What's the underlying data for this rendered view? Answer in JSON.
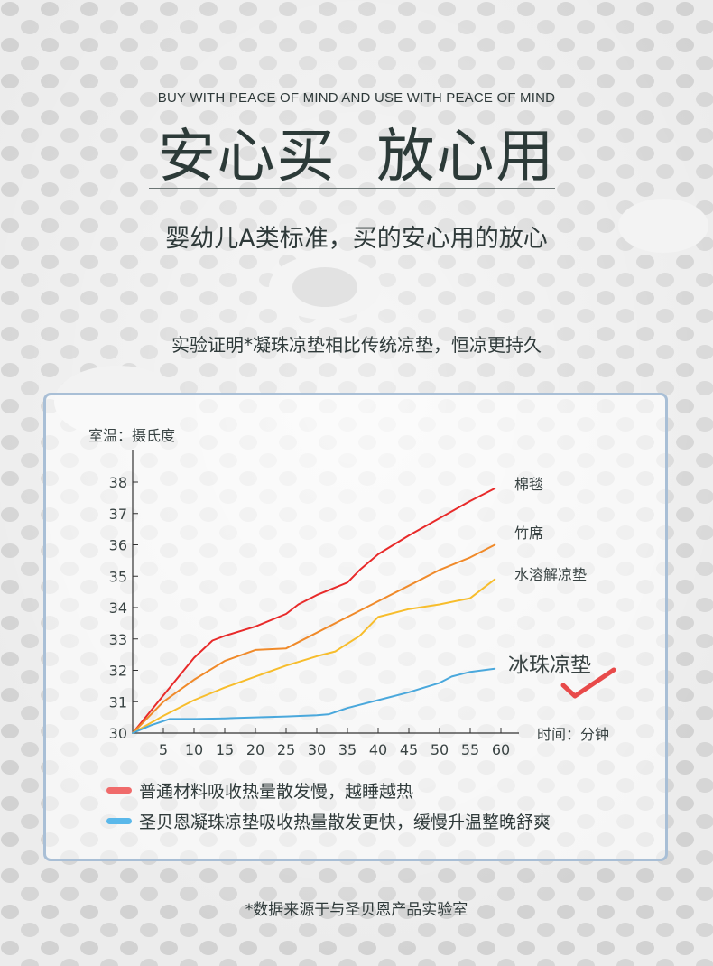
{
  "header": {
    "tagline_en": "BUY WITH PEACE OF MIND AND USE WITH PEACE OF MIND",
    "title_cn": "安心买  放心用",
    "subtitle": "婴幼儿A类标准，买的安心用的放心"
  },
  "intro": "实验证明*凝珠凉垫相比传统凉垫，恒凉更持久",
  "colors": {
    "棉毯": "#e82a2a",
    "竹席": "#f08a2a",
    "水溶解凉垫": "#f7bd2c",
    "冰珠凉垫": "#4aa8dc",
    "check": "#e84a4a",
    "legend_red": "#f06b6b",
    "legend_blue": "#5ab8ea"
  },
  "chart_data": {
    "type": "line",
    "ylabel": "室温：摄氏度",
    "xlabel": "时间：分钟",
    "xlim": [
      0,
      60
    ],
    "ylim": [
      30,
      38
    ],
    "x_ticks": [
      5,
      10,
      15,
      20,
      25,
      30,
      35,
      40,
      45,
      50,
      55,
      60
    ],
    "y_ticks": [
      30,
      31,
      32,
      33,
      34,
      35,
      36,
      37,
      38
    ],
    "series": [
      {
        "name": "棉毯",
        "x": [
          0,
          5,
          10,
          13,
          15,
          20,
          25,
          27,
          30,
          35,
          37,
          40,
          45,
          50,
          55,
          59
        ],
        "y": [
          30,
          31.2,
          32.4,
          32.95,
          33.1,
          33.4,
          33.8,
          34.1,
          34.4,
          34.8,
          35.2,
          35.7,
          36.3,
          36.85,
          37.4,
          37.8
        ]
      },
      {
        "name": "竹席",
        "x": [
          0,
          5,
          10,
          15,
          20,
          25,
          30,
          35,
          40,
          45,
          50,
          55,
          59
        ],
        "y": [
          30,
          31.0,
          31.7,
          32.3,
          32.65,
          32.7,
          33.2,
          33.7,
          34.2,
          34.7,
          35.2,
          35.6,
          36.0
        ]
      },
      {
        "name": "水溶解凉垫",
        "x": [
          0,
          5,
          10,
          15,
          20,
          25,
          30,
          33,
          37,
          40,
          45,
          50,
          55,
          59
        ],
        "y": [
          30,
          30.55,
          31.05,
          31.45,
          31.8,
          32.15,
          32.45,
          32.6,
          33.1,
          33.7,
          33.95,
          34.1,
          34.3,
          34.9
        ]
      },
      {
        "name": "冰珠凉垫",
        "x": [
          0,
          3,
          6,
          10,
          15,
          20,
          25,
          30,
          32,
          35,
          40,
          45,
          50,
          52,
          55,
          59
        ],
        "y": [
          30,
          30.25,
          30.45,
          30.45,
          30.47,
          30.5,
          30.53,
          30.57,
          30.6,
          30.8,
          31.05,
          31.3,
          31.6,
          31.8,
          31.95,
          32.05
        ]
      }
    ],
    "annotation": "冰珠凉垫",
    "legend": [
      {
        "color": "red",
        "text": "普通材料吸收热量散发慢，越睡越热"
      },
      {
        "color": "blue",
        "text": "圣贝恩凝珠凉垫吸收热量散发更快，缓慢升温整晚舒爽"
      }
    ]
  },
  "footnote": "*数据来源于与圣贝恩产品实验室"
}
